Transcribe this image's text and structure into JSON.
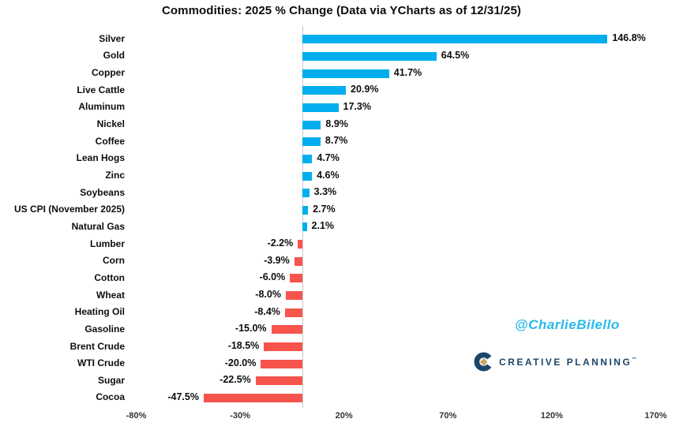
{
  "title": "Commodities: 2025 % Change (Data via YCharts as of 12/31/25)",
  "watermark": "@CharlieBilello",
  "brand": {
    "name": "CREATIVE PLANNING",
    "tm": "™"
  },
  "colors": {
    "positive_bar": "#00aeef",
    "negative_bar": "#f6544c",
    "watermark_cyan": "#29b9ec",
    "brand_navy": "#1b4669",
    "brand_gold": "#c8a464",
    "axis_line": "#c9c9c9",
    "text": "#0d0d0d"
  },
  "chart_data": {
    "type": "bar",
    "orientation": "horizontal",
    "title": "Commodities: 2025 % Change (Data via YCharts as of 12/31/25)",
    "xlabel": "",
    "ylabel": "",
    "xlim": [
      -80,
      170
    ],
    "grid": false,
    "legend": "none",
    "categories": [
      "Silver",
      "Gold",
      "Copper",
      "Live Cattle",
      "Aluminum",
      "Nickel",
      "Coffee",
      "Lean Hogs",
      "Zinc",
      "Soybeans",
      "US CPI (November 2025)",
      "Natural Gas",
      "Lumber",
      "Corn",
      "Cotton",
      "Wheat",
      "Heating Oil",
      "Gasoline",
      "Brent Crude",
      "WTI Crude",
      "Sugar",
      "Cocoa"
    ],
    "values": [
      146.8,
      64.5,
      41.7,
      20.9,
      17.3,
      8.9,
      8.7,
      4.7,
      4.6,
      3.3,
      2.7,
      2.1,
      -2.2,
      -3.9,
      -6.0,
      -8.0,
      -8.4,
      -15.0,
      -18.5,
      -20.0,
      -22.5,
      -47.5
    ],
    "value_labels": [
      "146.8%",
      "64.5%",
      "41.7%",
      "20.9%",
      "17.3%",
      "8.9%",
      "8.7%",
      "4.7%",
      "4.6%",
      "3.3%",
      "2.7%",
      "2.1%",
      "-2.2%",
      "-3.9%",
      "-6.0%",
      "-8.0%",
      "-8.4%",
      "-15.0%",
      "-18.5%",
      "-20.0%",
      "-22.5%",
      "-47.5%"
    ],
    "x_ticks": [
      -80,
      -30,
      20,
      70,
      120,
      170
    ],
    "x_tick_labels": [
      "-80%",
      "-30%",
      "20%",
      "70%",
      "120%",
      "170%"
    ]
  }
}
